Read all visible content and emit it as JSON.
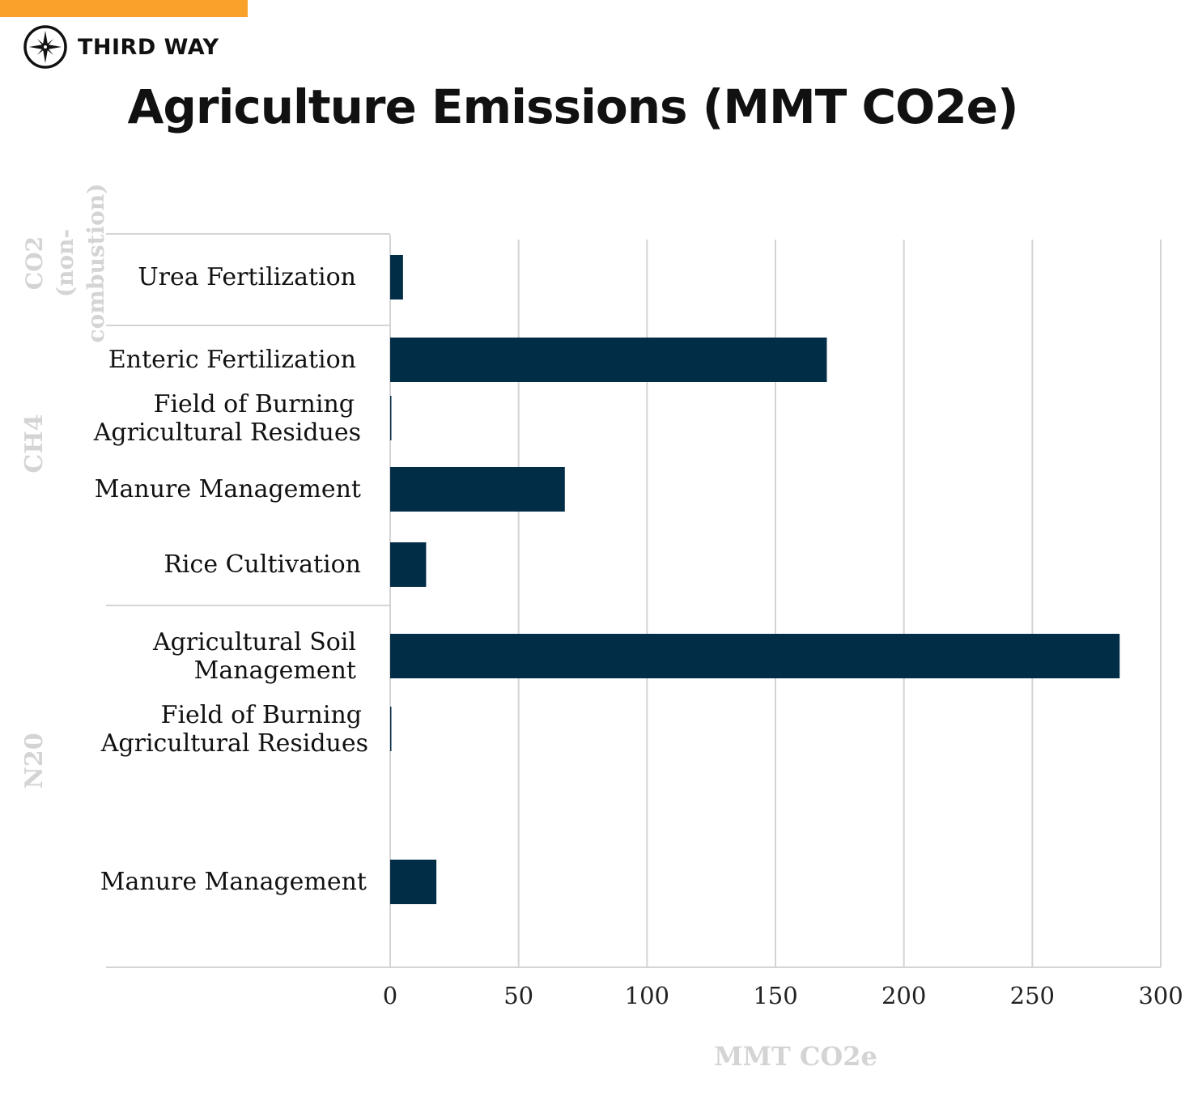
{
  "brand": {
    "name": "THIRD WAY",
    "accent": "#f9a12b"
  },
  "chart_data": {
    "type": "bar",
    "orientation": "horizontal",
    "title": "Agriculture Emissions (MMT CO2e)",
    "xlabel": "MMT CO2e",
    "xlim": [
      0,
      300
    ],
    "xticks": [
      0,
      50,
      100,
      150,
      200,
      250,
      300
    ],
    "grid": true,
    "bar_color": "#022d47",
    "groups": [
      {
        "label": "CO2 (non-combustion)",
        "label_lines": [
          "CO2",
          "(non-",
          "combustion)"
        ],
        "categories": [
          "Urea Fertilization"
        ],
        "values": [
          5
        ]
      },
      {
        "label": "CH4",
        "label_lines": [
          "CH4"
        ],
        "categories": [
          "Enteric Fertilization",
          "Field of Burning Agricultural Residues",
          "Manure Management",
          "Rice Cultivation"
        ],
        "values": [
          170,
          0.4,
          68,
          14
        ]
      },
      {
        "label": "N20",
        "label_lines": [
          "N20"
        ],
        "categories": [
          "Agricultural Soil Management",
          "Field of Burning Agricultural Residues",
          "Manure Management"
        ],
        "values": [
          284,
          0.2,
          18
        ]
      }
    ]
  }
}
